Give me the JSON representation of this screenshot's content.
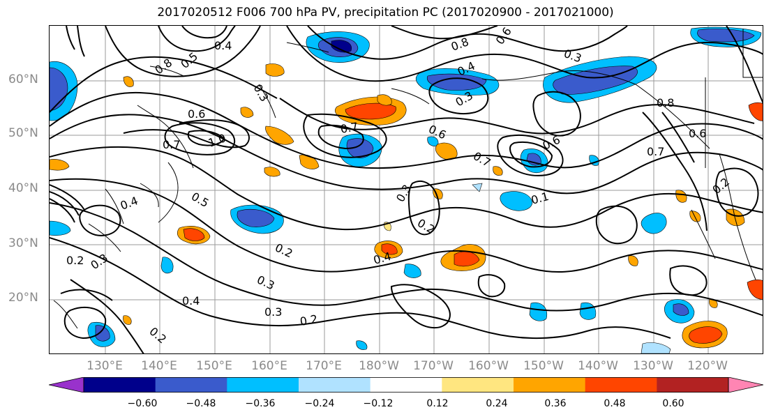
{
  "title": "2017020512 F006 700 hPa PV, precipitation PC (2017020900 - 2017021000)",
  "latitude_labels": [
    "60°N",
    "50°N",
    "40°N",
    "30°N",
    "20°N"
  ],
  "longitude_labels": [
    "130°E",
    "140°E",
    "150°E",
    "160°E",
    "170°E",
    "180°W",
    "170°W",
    "160°W",
    "150°W",
    "140°W",
    "130°W",
    "120°W"
  ],
  "pv_contour_labels": [
    "0.4",
    "0.8",
    "0.5",
    "0.6",
    "0.7",
    "1.0",
    "0.3",
    "0.2",
    "0.5",
    "0.4",
    "0.3",
    "0.2",
    "0.3",
    "0.4",
    "0.2",
    "0.3",
    "0.7",
    "0.6",
    "0.4",
    "0.3",
    "0.6",
    "0.8",
    "0.3",
    "0.7",
    "0.1",
    "0.6",
    "0.7",
    "0.8",
    "0.6",
    "0.2",
    "0.4",
    "0.2",
    "0.3",
    "0.2"
  ],
  "colorbar": {
    "ticks": [
      "−0.60",
      "−0.48",
      "−0.36",
      "−0.24",
      "−0.12",
      "0.12",
      "0.24",
      "0.36",
      "0.48",
      "0.60"
    ],
    "colors": [
      "#9932cc",
      "#00008b",
      "#3a5bcc",
      "#00bfff",
      "#b0e2ff",
      "#ffffff",
      "#ffe680",
      "#ffa500",
      "#ff4500",
      "#b22222",
      "#ff85b3"
    ]
  }
}
